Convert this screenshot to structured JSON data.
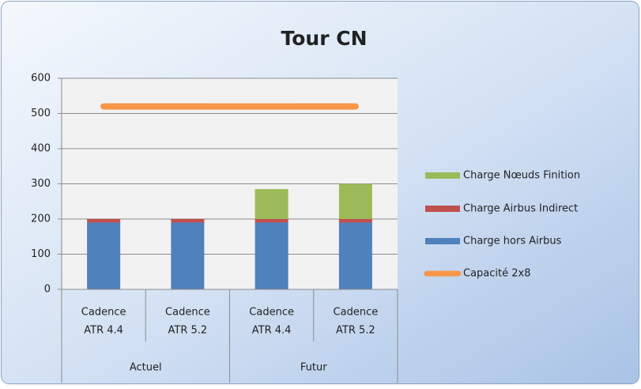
{
  "chart_data": {
    "type": "stacked-bar-line",
    "title": "Tour CN",
    "groups": [
      {
        "name": "Actuel",
        "categories": [
          [
            "Cadence",
            "ATR 4.4"
          ],
          [
            "Cadence",
            "ATR 5.2"
          ]
        ]
      },
      {
        "name": "Futur",
        "categories": [
          [
            "Cadence",
            "ATR 4.4"
          ],
          [
            "Cadence",
            "ATR 5.2"
          ]
        ]
      }
    ],
    "series": [
      {
        "name": "Charge hors Airbus",
        "color": "#4f81bd",
        "kind": "bar",
        "values": [
          190,
          190,
          190,
          190
        ]
      },
      {
        "name": "Charge Airbus Indirect",
        "color": "#c0504d",
        "kind": "bar",
        "values": [
          10,
          10,
          10,
          10
        ]
      },
      {
        "name": "Charge Nœuds Finition",
        "color": "#9bbb59",
        "kind": "bar",
        "values": [
          0,
          0,
          85,
          100
        ]
      },
      {
        "name": "Capacité 2x8",
        "color": "#f79646",
        "kind": "line",
        "values": [
          520,
          520,
          520,
          520
        ]
      }
    ],
    "ylim": [
      0,
      600
    ],
    "yticks": [
      0,
      100,
      200,
      300,
      400,
      500,
      600
    ],
    "grid": true,
    "legend": "right"
  }
}
